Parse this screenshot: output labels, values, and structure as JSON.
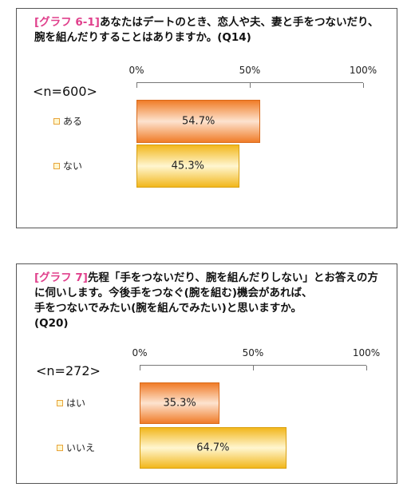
{
  "chart_data": [
    {
      "type": "bar",
      "orientation": "horizontal",
      "title_tag": "[グラフ 6-1]",
      "title_lines": [
        "あなたはデートのとき、恋人や夫、妻と手をつないだり、",
        "腕を組んだりすることはありますか。(Q14)"
      ],
      "sample_label": "<n=600>",
      "xlim": [
        0,
        100
      ],
      "ticks": [
        "0%",
        "50%",
        "100%"
      ],
      "categories": [
        "ある",
        "ない"
      ],
      "values": [
        54.7,
        45.3
      ],
      "value_labels": [
        "54.7%",
        "45.3%"
      ],
      "bar_colors": [
        "#f07c28",
        "#f2b71c"
      ]
    },
    {
      "type": "bar",
      "orientation": "horizontal",
      "title_tag": "[グラフ 7]",
      "title_lines": [
        "先程「手をつないだり、腕を組んだりしない」とお答えの方",
        "に伺いします。今後手をつなぐ(腕を組む)機会があれば、",
        "手をつないでみたい(腕を組んでみたい)と思いますか。",
        "(Q20)"
      ],
      "sample_label": "<n=272>",
      "xlim": [
        0,
        100
      ],
      "ticks": [
        "0%",
        "50%",
        "100%"
      ],
      "categories": [
        "はい",
        "いいえ"
      ],
      "values": [
        35.3,
        64.7
      ],
      "value_labels": [
        "35.3%",
        "64.7%"
      ],
      "bar_colors": [
        "#f07c28",
        "#f2b71c"
      ]
    }
  ]
}
